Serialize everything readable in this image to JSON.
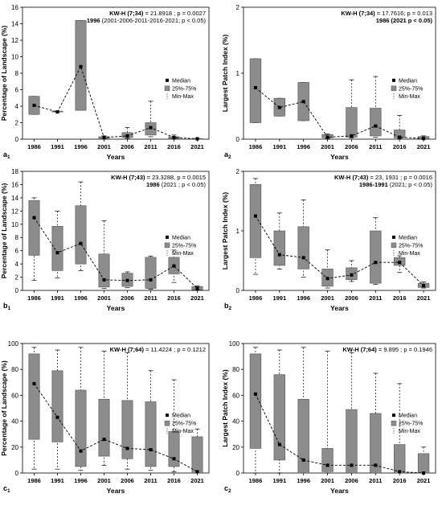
{
  "chart_data": [
    {
      "id": "a1",
      "type": "box",
      "panel_label": "a",
      "panel_sub": "1",
      "ylabel": "Percentage of Landscape (%)",
      "xlabel": "Years",
      "ylim": [
        0,
        16
      ],
      "yticks": [
        0,
        2,
        4,
        6,
        8,
        10,
        12,
        14,
        16
      ],
      "categories": [
        "1986",
        "1991",
        "1996",
        "2001",
        "2006",
        "2011",
        "2016",
        "2021"
      ],
      "median": [
        4.1,
        3.3,
        8.8,
        0.2,
        0.4,
        1.4,
        0.2,
        0.05
      ],
      "q1": [
        3.0,
        3.3,
        3.5,
        0.1,
        0.2,
        0.5,
        0.1,
        0.02
      ],
      "q3": [
        5.2,
        3.4,
        14.4,
        0.3,
        0.8,
        2.0,
        0.3,
        0.08
      ],
      "min": [
        3.0,
        3.3,
        3.5,
        0.05,
        0.1,
        0.3,
        0.05,
        0.01
      ],
      "max": [
        5.2,
        3.4,
        14.4,
        0.4,
        1.4,
        4.6,
        0.5,
        0.1
      ],
      "stats_line1_bold": "KW-H (7;34)",
      "stats_line1_rest": " = 21.8918 ; p = 0.0027",
      "stats_line2_bold": "1996",
      "stats_line2_rest": " (2001-2006-2011-2016-2021; p < 0.05)",
      "legend": [
        "Median",
        "25%-75%",
        "Min-Max"
      ],
      "grid": false
    },
    {
      "id": "a2",
      "type": "box",
      "panel_label": "a",
      "panel_sub": "2",
      "ylabel": "Largest Patch Index (%)",
      "xlabel": "Years",
      "ylim": [
        0,
        2
      ],
      "yticks": [
        0,
        1,
        2
      ],
      "categories": [
        "1986",
        "1991",
        "1996",
        "2001",
        "2006",
        "2011",
        "2016",
        "2021"
      ],
      "median": [
        0.78,
        0.48,
        0.57,
        0.03,
        0.05,
        0.2,
        0.03,
        0.01
      ],
      "q1": [
        0.25,
        0.35,
        0.28,
        0.02,
        0.03,
        0.05,
        0.02,
        0.005
      ],
      "q3": [
        1.22,
        0.62,
        0.86,
        0.07,
        0.48,
        0.47,
        0.14,
        0.04
      ],
      "min": [
        0.25,
        0.35,
        0.28,
        0.01,
        0.02,
        0.03,
        0.01,
        0.0
      ],
      "max": [
        1.22,
        0.62,
        0.86,
        0.08,
        0.9,
        0.95,
        0.36,
        0.05
      ],
      "stats_line1_bold": "KW-H (7;34)",
      "stats_line1_rest": " = 17.7616; p = 0.013",
      "stats_line2_bold": "1986 (2021 p < 0.05)",
      "stats_line2_rest": "",
      "legend": [
        "Median",
        "25%-75%",
        "Min-Max"
      ],
      "grid": false
    },
    {
      "id": "b1",
      "type": "box",
      "panel_label": "b",
      "panel_sub": "1",
      "ylabel": "Percentage of Landscape (%)",
      "xlabel": "Years",
      "ylim": [
        0,
        18
      ],
      "yticks": [
        0,
        2,
        4,
        6,
        8,
        10,
        12,
        14,
        16,
        18
      ],
      "categories": [
        "1986",
        "1991",
        "1996",
        "2001",
        "2006",
        "2011",
        "2016",
        "2021"
      ],
      "median": [
        11.0,
        5.7,
        7.1,
        1.6,
        1.5,
        1.6,
        3.7,
        0.3
      ],
      "q1": [
        5.3,
        3.0,
        4.0,
        0.5,
        0.6,
        0.3,
        2.5,
        0.1
      ],
      "q3": [
        13.6,
        9.7,
        12.8,
        5.5,
        2.6,
        5.0,
        5.0,
        0.6
      ],
      "min": [
        1.5,
        1.9,
        3.0,
        0.3,
        0.4,
        0.2,
        1.2,
        0.05
      ],
      "max": [
        14.0,
        12.0,
        16.4,
        10.5,
        2.8,
        5.2,
        6.1,
        0.7
      ],
      "stats_line1_bold": "KW-H (7;43)",
      "stats_line1_rest": " = 23.3288, p = 0.0015",
      "stats_line2_bold": "1986",
      "stats_line2_rest": " (2021 ; p < 0.05)",
      "legend": [
        "Median",
        "25%-75%",
        "Min-Max"
      ],
      "grid": false
    },
    {
      "id": "b2",
      "type": "box",
      "panel_label": "b",
      "panel_sub": "2",
      "ylabel": "Largest Patch Index (%)",
      "xlabel": "Years",
      "ylim": [
        0,
        2
      ],
      "yticks": [
        0,
        1,
        2
      ],
      "categories": [
        "1986",
        "1991",
        "1996",
        "2001",
        "2006",
        "2011",
        "2016",
        "2021"
      ],
      "median": [
        1.25,
        0.6,
        0.55,
        0.2,
        0.26,
        0.47,
        0.47,
        0.08
      ],
      "q1": [
        0.55,
        0.42,
        0.36,
        0.07,
        0.18,
        0.12,
        0.42,
        0.05
      ],
      "q3": [
        1.78,
        1.0,
        1.07,
        0.36,
        0.38,
        1.0,
        0.55,
        0.12
      ],
      "min": [
        0.27,
        0.36,
        0.22,
        0.04,
        0.15,
        0.1,
        0.3,
        0.04
      ],
      "max": [
        1.88,
        1.3,
        1.52,
        0.68,
        0.5,
        1.22,
        0.58,
        0.14
      ],
      "stats_line1_bold": "KW-H (7;43)",
      "stats_line1_rest": " = 23, 1931 ; p = 0.0016",
      "stats_line2_bold": "1986-1991",
      "stats_line2_rest": " (2021; p < 0.05)",
      "legend": [
        "Median",
        "25%-75%",
        "Min-Max"
      ],
      "grid": false
    },
    {
      "id": "c1",
      "type": "box",
      "panel_label": "c",
      "panel_sub": "1",
      "ylabel": "Percentage of Landscape (%)",
      "xlabel": "Years",
      "ylim": [
        0,
        100
      ],
      "yticks": [
        0,
        20,
        40,
        60,
        80,
        100
      ],
      "categories": [
        "1986",
        "1991",
        "1996",
        "2001",
        "2006",
        "2011",
        "2016",
        "2021"
      ],
      "median": [
        69,
        43,
        17,
        26,
        19,
        18,
        11,
        1
      ],
      "q1": [
        26,
        24,
        5,
        13,
        11,
        5,
        5,
        0
      ],
      "q3": [
        92,
        79,
        64,
        57,
        56,
        55,
        32,
        28
      ],
      "min": [
        3,
        3,
        2,
        6,
        3,
        2,
        1,
        0
      ],
      "max": [
        97,
        95,
        97,
        94,
        93,
        79,
        72,
        34
      ],
      "stats_line1_bold": "KW-H (7;64)",
      "stats_line1_rest": " = 11.4224 ; p = 0.1212",
      "stats_line2_bold": "",
      "stats_line2_rest": "",
      "legend": [
        "Median",
        "25%-75%",
        "Min-Max"
      ],
      "grid": false
    },
    {
      "id": "c2",
      "type": "box",
      "panel_label": "c",
      "panel_sub": "2",
      "ylabel": "Largest Patch Index (%)",
      "xlabel": "Years",
      "ylim": [
        0,
        100
      ],
      "yticks": [
        0,
        20,
        40,
        60,
        80,
        100
      ],
      "categories": [
        "1986",
        "1991",
        "1996",
        "2001",
        "2006",
        "2011",
        "2016",
        "2021"
      ],
      "median": [
        61,
        22,
        10,
        6,
        6,
        6,
        1,
        0
      ],
      "q1": [
        19,
        10,
        0,
        1,
        0,
        0,
        0,
        0
      ],
      "q3": [
        92,
        76,
        57,
        19,
        49,
        46,
        22,
        15
      ],
      "min": [
        0,
        0,
        0,
        0,
        0,
        0,
        0,
        0
      ],
      "max": [
        97,
        95,
        97,
        94,
        93,
        77,
        69,
        20
      ],
      "stats_line1_bold": "KW-H (7;64)",
      "stats_line1_rest": " = 9.895 ; p = 0.1946",
      "stats_line2_bold": "",
      "stats_line2_rest": "",
      "legend": [
        "Median",
        "25%-75%",
        "Min-Max"
      ],
      "grid": false
    }
  ],
  "colors": {
    "box_fill": "#8c8c8c",
    "box_stroke": "#555555",
    "median": "#000000",
    "axis": "#000000"
  }
}
